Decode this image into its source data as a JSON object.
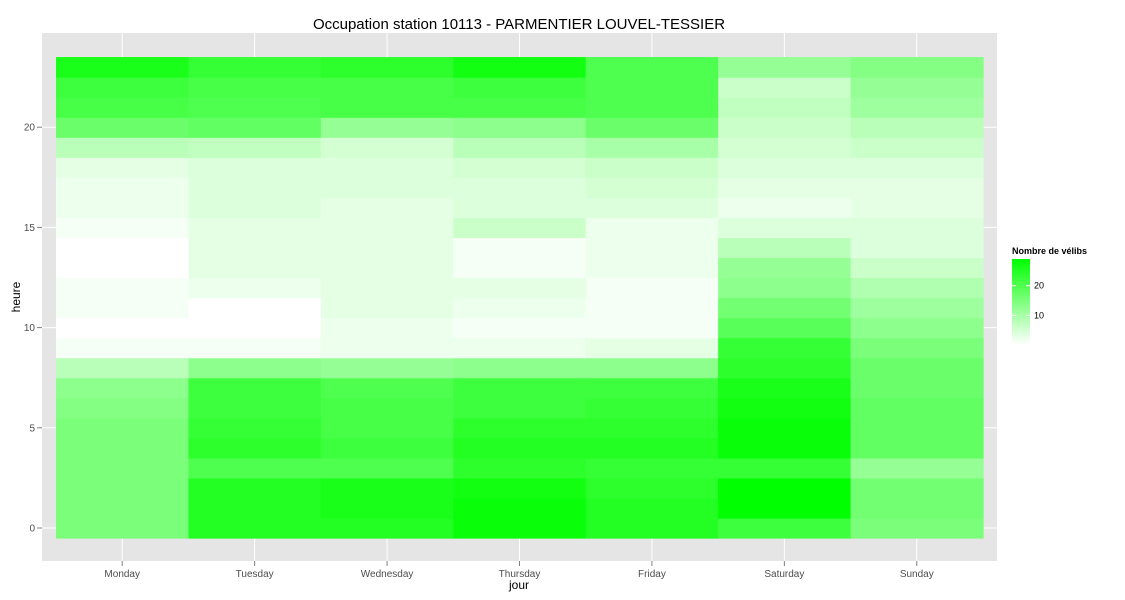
{
  "chart_data": {
    "type": "heatmap",
    "title": "Occupation station 10113 - PARMENTIER LOUVEL-TESSIER",
    "xlabel": "jour",
    "ylabel": "heure",
    "categories": [
      "Monday",
      "Tuesday",
      "Wednesday",
      "Thursday",
      "Friday",
      "Saturday",
      "Sunday"
    ],
    "hours": [
      0,
      1,
      2,
      3,
      4,
      5,
      6,
      7,
      8,
      9,
      10,
      11,
      12,
      13,
      14,
      15,
      16,
      17,
      18,
      19,
      20,
      21,
      22,
      23
    ],
    "yticks": [
      0,
      5,
      10,
      15,
      20
    ],
    "ylim": [
      -0.5,
      23.5
    ],
    "values": [
      [
        15,
        25,
        25,
        28,
        25,
        22,
        15
      ],
      [
        15,
        25,
        26,
        28,
        25,
        29,
        16
      ],
      [
        15,
        25,
        26,
        27,
        24,
        29,
        16
      ],
      [
        15,
        20,
        20,
        24,
        23,
        23,
        12
      ],
      [
        15,
        24,
        22,
        25,
        25,
        28,
        18
      ],
      [
        15,
        23,
        21,
        24,
        24,
        28,
        18
      ],
      [
        14,
        22,
        21,
        22,
        23,
        27,
        18
      ],
      [
        13,
        22,
        20,
        22,
        22,
        26,
        17
      ],
      [
        8,
        13,
        12,
        13,
        13,
        24,
        17
      ],
      [
        1,
        1,
        2,
        2,
        3,
        23,
        15
      ],
      [
        0,
        0,
        2,
        1,
        1,
        19,
        13
      ],
      [
        1,
        0,
        3,
        2,
        1,
        16,
        11
      ],
      [
        1,
        2,
        3,
        3,
        1,
        13,
        9
      ],
      [
        0,
        3,
        3,
        1,
        2,
        12,
        6
      ],
      [
        0,
        3,
        3,
        1,
        2,
        8,
        4
      ],
      [
        1,
        3,
        3,
        6,
        2,
        4,
        4
      ],
      [
        2,
        4,
        3,
        4,
        4,
        2,
        3
      ],
      [
        2,
        4,
        4,
        4,
        5,
        3,
        3
      ],
      [
        3,
        4,
        4,
        5,
        6,
        4,
        4
      ],
      [
        8,
        7,
        5,
        8,
        10,
        5,
        6
      ],
      [
        17,
        18,
        12,
        13,
        17,
        6,
        8
      ],
      [
        21,
        20,
        21,
        21,
        20,
        7,
        11
      ],
      [
        22,
        21,
        21,
        22,
        20,
        6,
        12
      ],
      [
        26,
        23,
        24,
        27,
        20,
        12,
        14
      ]
    ],
    "legend": {
      "title": "Nombre de vélibs",
      "ticks": [
        10,
        20
      ],
      "range": [
        0,
        29
      ],
      "position": "right"
    },
    "colors": {
      "low": "#ffffff",
      "high": "#00ff00",
      "panel": "#e5e5e5",
      "grid": "#ffffff"
    },
    "grid": true
  }
}
